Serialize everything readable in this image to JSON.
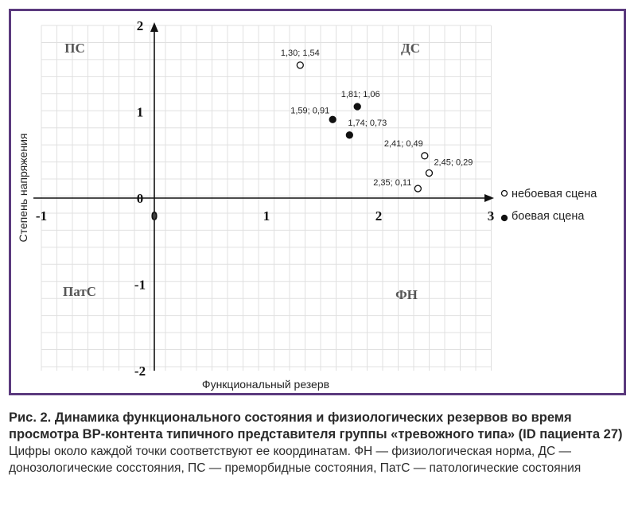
{
  "chart_data": {
    "type": "scatter",
    "xlabel": "Функциональный резерв",
    "ylabel": "Степень напряжения",
    "xlim": [
      -1,
      3
    ],
    "ylim": [
      -2,
      2
    ],
    "x_ticks": [
      "-1",
      "0",
      "1",
      "2",
      "3"
    ],
    "y_ticks": [
      "2",
      "1",
      "0",
      "-1",
      "-2"
    ],
    "grid": true,
    "legend_position": "right",
    "quadrant_labels": {
      "top_left": "ПС",
      "top_right": "ДС",
      "bottom_left": "ПатС",
      "bottom_right": "ФН"
    },
    "series": [
      {
        "name": "небоевая сцена",
        "marker": "open-circle",
        "points": [
          {
            "x": 1.3,
            "y": 1.54,
            "label": "1,30; 1,54"
          },
          {
            "x": 2.41,
            "y": 0.49,
            "label": "2,41; 0,49"
          },
          {
            "x": 2.45,
            "y": 0.29,
            "label": "2,45; 0,29"
          },
          {
            "x": 2.35,
            "y": 0.11,
            "label": "2,35; 0,11"
          }
        ]
      },
      {
        "name": "боевая сцена",
        "marker": "filled-circle",
        "points": [
          {
            "x": 1.81,
            "y": 1.06,
            "label": "1,81; 1,06"
          },
          {
            "x": 1.59,
            "y": 0.91,
            "label": "1,59; 0,91"
          },
          {
            "x": 1.74,
            "y": 0.73,
            "label": "1,74; 0,73"
          }
        ]
      }
    ],
    "colors": {
      "frame": "#5b3a7e",
      "grid": "#e0e0e0",
      "axis": "#111111",
      "marker": "#111111"
    }
  },
  "caption": {
    "title": "Рис. 2. Динамика функционального состояния и физиологических резервов во время просмотра ВР-контента типичного представителя группы «тревожного типа» (ID пациента 27)",
    "text": "Цифры около каждой точки соответствуют ее координатам. ФН — физиологическая норма, ДС — донозологические сосстояния, ПС — преморбидные состояния, ПатС — патологические состояния"
  }
}
